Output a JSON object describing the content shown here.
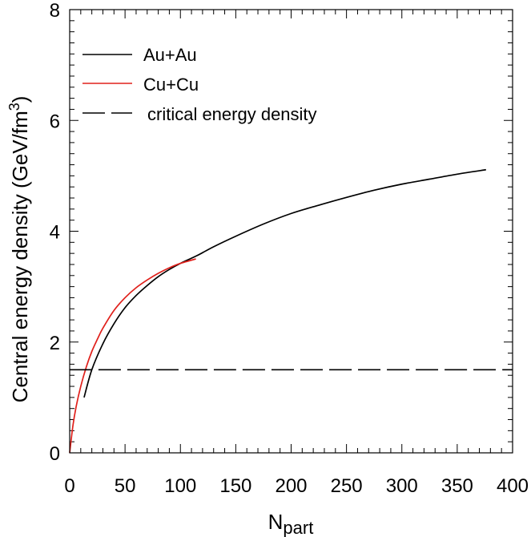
{
  "chart_data": {
    "type": "line",
    "title": "",
    "xlabel": "N",
    "xlabel_sub": "part",
    "ylabel": "Central energy density (GeV/fm",
    "ylabel_sup": "3",
    "ylabel_close": ")",
    "xlim": [
      0,
      400
    ],
    "ylim": [
      0,
      8
    ],
    "x_ticks": [
      0,
      50,
      100,
      150,
      200,
      250,
      300,
      350,
      400
    ],
    "x_tick_labels": [
      "0",
      "50",
      "100",
      "150",
      "200",
      "250",
      "300",
      "350",
      "400"
    ],
    "y_ticks": [
      0,
      2,
      4,
      6,
      8
    ],
    "y_tick_labels": [
      "0",
      "2",
      "4",
      "6",
      "8"
    ],
    "legend_position": "top-left",
    "series": [
      {
        "name": "Au+Au",
        "color": "#000000",
        "style": "solid",
        "x": [
          13,
          20,
          30,
          40,
          50,
          60,
          70,
          80,
          90,
          100,
          115,
          130,
          150,
          175,
          200,
          225,
          250,
          275,
          300,
          325,
          350,
          376
        ],
        "y": [
          1.0,
          1.5,
          1.97,
          2.33,
          2.62,
          2.84,
          3.02,
          3.18,
          3.31,
          3.42,
          3.56,
          3.72,
          3.91,
          4.13,
          4.32,
          4.47,
          4.61,
          4.74,
          4.85,
          4.94,
          5.03,
          5.11
        ]
      },
      {
        "name": "Cu+Cu",
        "color": "#e0201b",
        "style": "solid",
        "x": [
          0,
          3,
          6,
          10,
          15,
          20,
          25,
          30,
          40,
          50,
          60,
          70,
          80,
          90,
          100,
          114
        ],
        "y": [
          0.0,
          0.5,
          0.85,
          1.2,
          1.55,
          1.83,
          2.05,
          2.25,
          2.57,
          2.8,
          2.98,
          3.12,
          3.24,
          3.34,
          3.42,
          3.5
        ]
      },
      {
        "name": "critical energy density",
        "color": "#000000",
        "style": "dashed",
        "x": [
          0,
          400
        ],
        "y": [
          1.5,
          1.5
        ]
      }
    ]
  }
}
